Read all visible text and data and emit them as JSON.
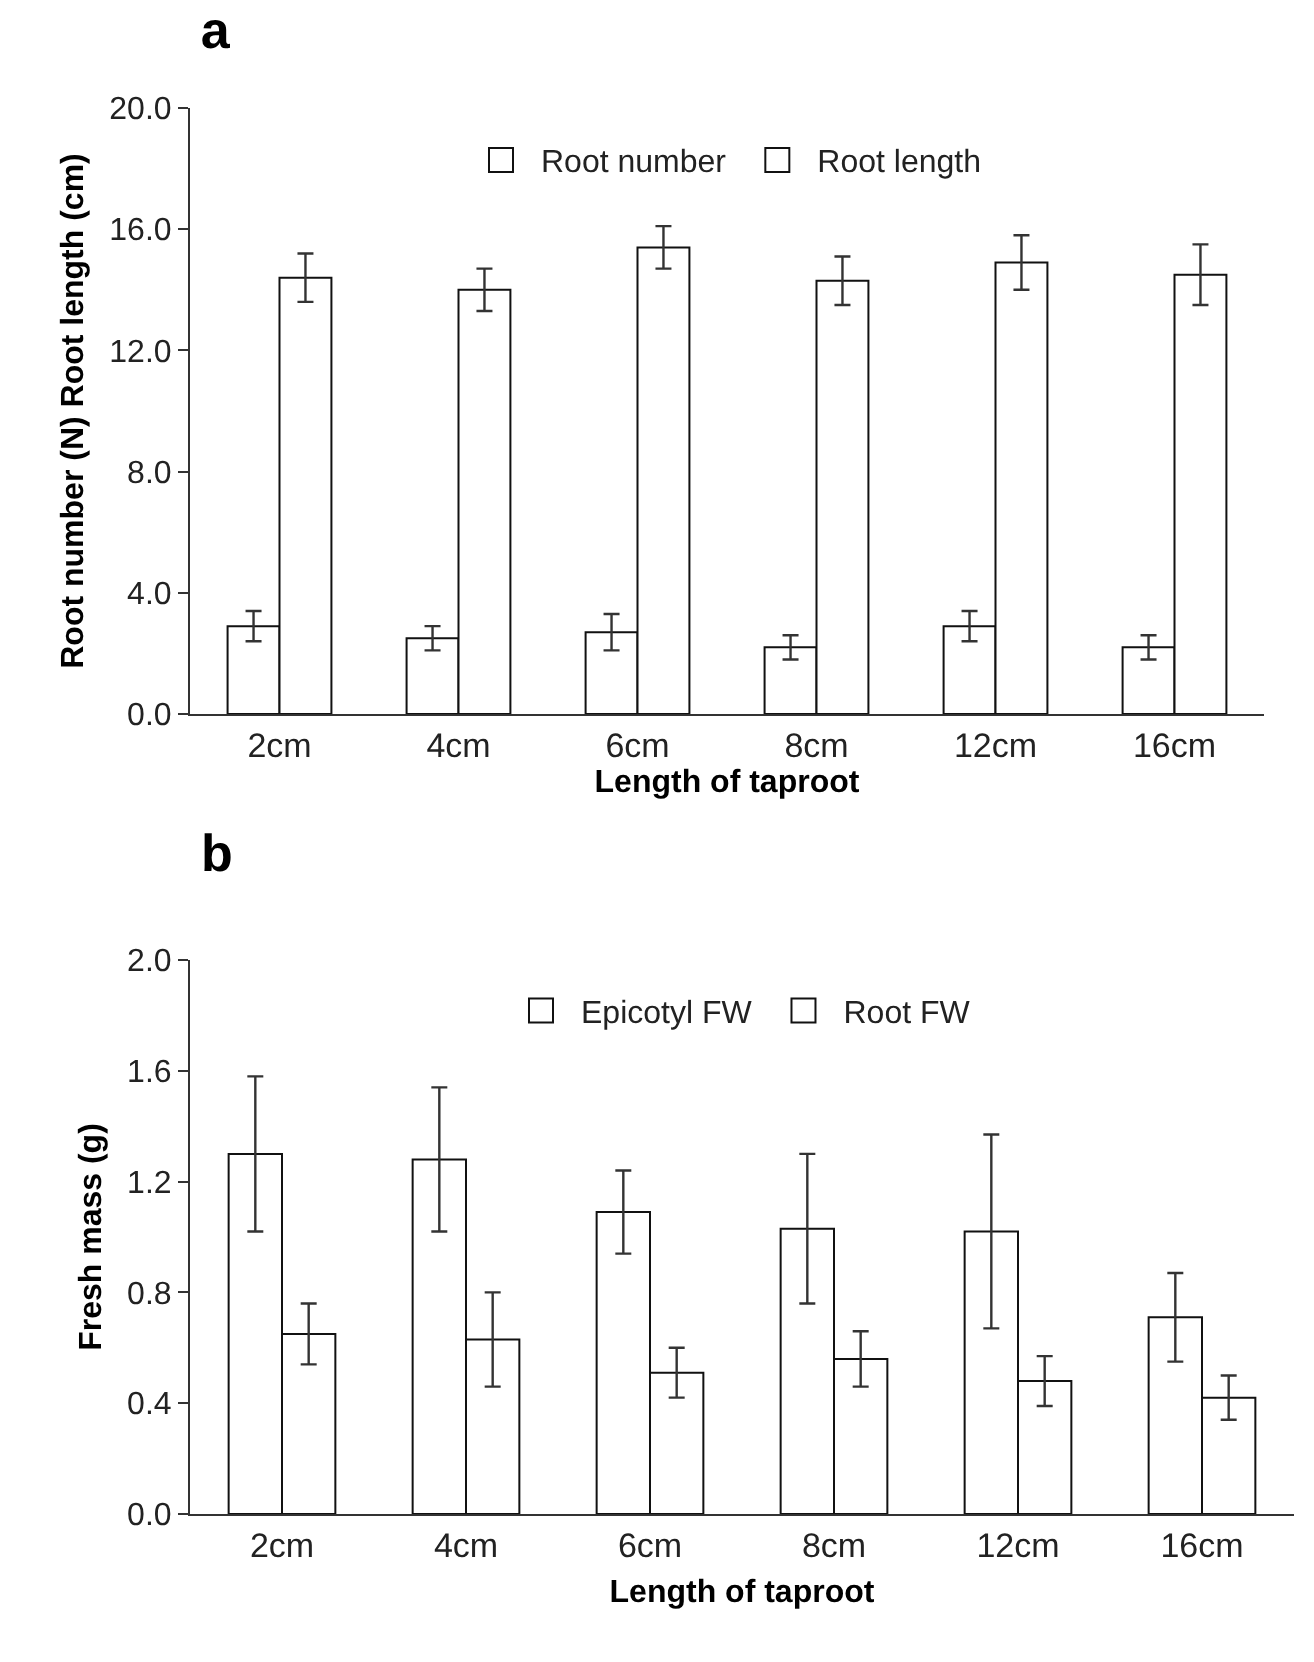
{
  "chart_data": [
    {
      "type": "bar",
      "title": "a",
      "xlabel": "Length of taproot",
      "ylabel": "Root number (N) Root length (cm)",
      "categories": [
        "2cm",
        "4cm",
        "6cm",
        "8cm",
        "12cm",
        "16cm"
      ],
      "series": [
        {
          "name": "Root number",
          "color": "#ffffff",
          "values": [
            2.9,
            2.5,
            2.7,
            2.2,
            2.9,
            2.2
          ],
          "errors": [
            0.5,
            0.4,
            0.6,
            0.4,
            0.5,
            0.4
          ]
        },
        {
          "name": "Root length",
          "color": "#ffffff",
          "values": [
            14.4,
            14.0,
            15.4,
            14.3,
            14.9,
            14.5
          ],
          "errors": [
            0.8,
            0.7,
            0.7,
            0.8,
            0.9,
            1.0
          ]
        }
      ],
      "ylim": [
        0,
        20
      ],
      "yticks": [
        {
          "value": 0,
          "label": "0.0"
        },
        {
          "value": 4,
          "label": "4.0"
        },
        {
          "value": 8,
          "label": "8.0"
        },
        {
          "value": 12,
          "label": "12.0"
        },
        {
          "value": 16,
          "label": "16.0"
        },
        {
          "value": 20,
          "label": "20.0"
        }
      ],
      "legend": "top"
    },
    {
      "type": "bar",
      "title": "b",
      "xlabel": "Length of taproot",
      "ylabel": "Fresh mass (g)",
      "categories": [
        "2cm",
        "4cm",
        "6cm",
        "8cm",
        "12cm",
        "16cm"
      ],
      "series": [
        {
          "name": "Epicotyl FW",
          "color": "#ffffff",
          "values": [
            1.3,
            1.28,
            1.09,
            1.03,
            1.02,
            0.71
          ],
          "errors": [
            0.28,
            0.26,
            0.15,
            0.27,
            0.35,
            0.16
          ]
        },
        {
          "name": "Root FW",
          "color": "#ffffff",
          "values": [
            0.65,
            0.63,
            0.51,
            0.56,
            0.48,
            0.42
          ],
          "errors": [
            0.11,
            0.17,
            0.09,
            0.1,
            0.09,
            0.08
          ]
        }
      ],
      "ylim": [
        0,
        2
      ],
      "yticks": [
        {
          "value": 0,
          "label": "0.0"
        },
        {
          "value": 0.4,
          "label": "0.4"
        },
        {
          "value": 0.8,
          "label": "0.8"
        },
        {
          "value": 1.2,
          "label": "1.2"
        },
        {
          "value": 1.6,
          "label": "1.6"
        },
        {
          "value": 2,
          "label": "2.0"
        }
      ],
      "legend": "top"
    }
  ]
}
